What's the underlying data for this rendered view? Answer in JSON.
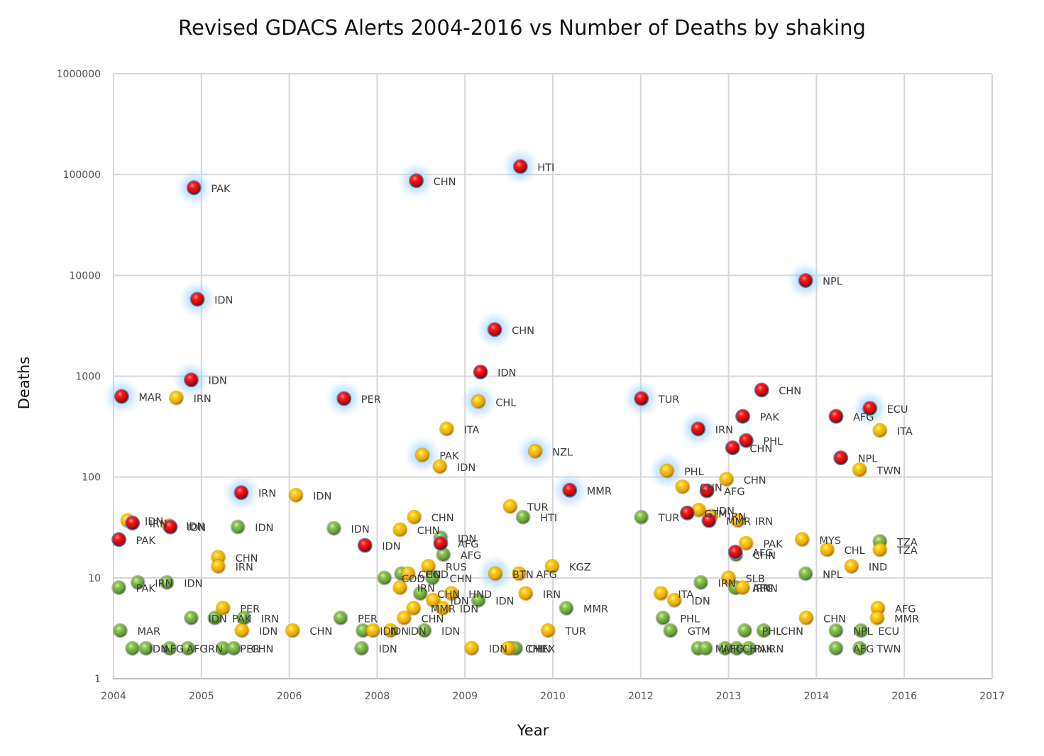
{
  "chart_data": {
    "type": "scatter",
    "title": "Revised GDACS Alerts 2004-2016 vs Number of Deaths by shaking",
    "xlabel": "Year",
    "ylabel": "Deaths",
    "xlim": [
      2004,
      2017
    ],
    "ylim": [
      1,
      1000000
    ],
    "yscale": "log",
    "grid": true,
    "legend": "none",
    "x_tick_labels": [
      "2004",
      "2005",
      "2006",
      "2008",
      "2009",
      "2010",
      "2012",
      "2013",
      "2014",
      "2016",
      "2017"
    ],
    "y_tick_labels": [
      "1",
      "10",
      "100",
      "1000",
      "10000",
      "100000",
      "1000000"
    ],
    "alert_colors": {
      "red": "#e00000",
      "orange": "#f2b400",
      "green": "#7cb342"
    },
    "series": [
      {
        "name": "Red alerts",
        "alert": "red",
        "points": [
          {
            "x": 2005.19,
            "y": 74000,
            "label": "PAK",
            "glow": true
          },
          {
            "x": 2008.48,
            "y": 87000,
            "label": "CHN",
            "glow": true
          },
          {
            "x": 2010.02,
            "y": 120000,
            "label": "HTI",
            "glow": true
          },
          {
            "x": 2005.24,
            "y": 5800,
            "label": "IDN",
            "glow": true
          },
          {
            "x": 2009.64,
            "y": 2900,
            "label": "CHN",
            "glow": true
          },
          {
            "x": 2014.24,
            "y": 8900,
            "label": "NPL",
            "glow": true
          },
          {
            "x": 2004.12,
            "y": 630,
            "label": "MAR",
            "glow": true
          },
          {
            "x": 2005.15,
            "y": 920,
            "label": "IDN",
            "glow": true
          },
          {
            "x": 2007.41,
            "y": 600,
            "label": "PER",
            "glow": true
          },
          {
            "x": 2009.43,
            "y": 1100,
            "label": "IDN",
            "glow": false
          },
          {
            "x": 2011.81,
            "y": 600,
            "label": "TUR",
            "glow": true
          },
          {
            "x": 2012.65,
            "y": 300,
            "label": "IRN",
            "glow": true
          },
          {
            "x": 2013.31,
            "y": 400,
            "label": "PAK",
            "glow": false
          },
          {
            "x": 2013.59,
            "y": 730,
            "label": "CHN",
            "glow": false
          },
          {
            "x": 2013.16,
            "y": 195,
            "label": "CHN",
            "glow": false
          },
          {
            "x": 2013.36,
            "y": 230,
            "label": "PHL",
            "glow": false
          },
          {
            "x": 2014.69,
            "y": 400,
            "label": "AFG",
            "glow": false
          },
          {
            "x": 2015.19,
            "y": 480,
            "label": "ECU",
            "glow": true
          },
          {
            "x": 2014.76,
            "y": 155,
            "label": "NPL",
            "glow": false
          },
          {
            "x": 2005.89,
            "y": 70,
            "label": "IRN",
            "glow": true
          },
          {
            "x": 2010.75,
            "y": 74,
            "label": "MMR",
            "glow": true
          },
          {
            "x": 2012.78,
            "y": 73,
            "label": "AFG",
            "glow": false
          },
          {
            "x": 2012.49,
            "y": 44,
            "label": "GTM",
            "glow": false
          },
          {
            "x": 2012.81,
            "y": 37,
            "label": "MMR",
            "glow": false
          },
          {
            "x": 2004.28,
            "y": 35,
            "label": "IRN",
            "glow": false
          },
          {
            "x": 2004.84,
            "y": 32,
            "label": "IDN",
            "glow": false
          },
          {
            "x": 2004.08,
            "y": 24,
            "label": "PAK",
            "glow": false
          },
          {
            "x": 2007.72,
            "y": 21,
            "label": "IDN",
            "glow": false
          },
          {
            "x": 2008.84,
            "y": 22,
            "label": "AFG",
            "glow": false
          },
          {
            "x": 2013.2,
            "y": 18,
            "label": "AFG",
            "glow": false
          }
        ]
      },
      {
        "name": "Orange alerts",
        "alert": "orange",
        "points": [
          {
            "x": 2004.93,
            "y": 610,
            "label": "IRN",
            "glow": false
          },
          {
            "x": 2009.4,
            "y": 560,
            "label": "CHL",
            "glow": true
          },
          {
            "x": 2008.93,
            "y": 300,
            "label": "ITA",
            "glow": false
          },
          {
            "x": 2008.57,
            "y": 165,
            "label": "PAK",
            "glow": true
          },
          {
            "x": 2008.83,
            "y": 127,
            "label": "IDN",
            "glow": false
          },
          {
            "x": 2010.24,
            "y": 180,
            "label": "NZL",
            "glow": true
          },
          {
            "x": 2012.19,
            "y": 115,
            "label": "PHL",
            "glow": true
          },
          {
            "x": 2012.42,
            "y": 80,
            "label": "CHN",
            "glow": false
          },
          {
            "x": 2013.07,
            "y": 95,
            "label": "CHN",
            "glow": false
          },
          {
            "x": 2015.34,
            "y": 290,
            "label": "ITA",
            "glow": false
          },
          {
            "x": 2015.04,
            "y": 118,
            "label": "TWN",
            "glow": false
          },
          {
            "x": 2006.7,
            "y": 66,
            "label": "IDN",
            "glow": false
          },
          {
            "x": 2004.21,
            "y": 37,
            "label": "IDN",
            "glow": false
          },
          {
            "x": 2004.82,
            "y": 33,
            "label": "IDN",
            "glow": false
          },
          {
            "x": 2008.45,
            "y": 40,
            "label": "CHN",
            "glow": false
          },
          {
            "x": 2008.24,
            "y": 30,
            "label": "CHN",
            "glow": false
          },
          {
            "x": 2009.87,
            "y": 51,
            "label": "TUR",
            "glow": false
          },
          {
            "x": 2012.66,
            "y": 47,
            "label": "IDN",
            "glow": false
          },
          {
            "x": 2012.84,
            "y": 41,
            "label": "IRN",
            "glow": false
          },
          {
            "x": 2013.24,
            "y": 37,
            "label": "IRN",
            "glow": false
          },
          {
            "x": 2013.36,
            "y": 22,
            "label": "PAK",
            "glow": false
          },
          {
            "x": 2014.19,
            "y": 24,
            "label": "MYS",
            "glow": false
          },
          {
            "x": 2014.56,
            "y": 19,
            "label": "CHL",
            "glow": false
          },
          {
            "x": 2015.34,
            "y": 19,
            "label": "TZA",
            "glow": false
          },
          {
            "x": 2014.92,
            "y": 13,
            "label": "IND",
            "glow": false
          },
          {
            "x": 2005.55,
            "y": 16,
            "label": "CHN",
            "glow": false
          },
          {
            "x": 2005.55,
            "y": 13,
            "label": "IRN",
            "glow": false
          },
          {
            "x": 2008.66,
            "y": 13,
            "label": "RUS",
            "glow": false
          },
          {
            "x": 2008.36,
            "y": 11,
            "label": "COD",
            "glow": false
          },
          {
            "x": 2009.65,
            "y": 11,
            "label": "BTN",
            "glow": true
          },
          {
            "x": 2010.0,
            "y": 11,
            "label": "AFG",
            "glow": false
          },
          {
            "x": 2010.49,
            "y": 13,
            "label": "KGZ",
            "glow": false
          },
          {
            "x": 2013.1,
            "y": 10,
            "label": "SLB",
            "glow": false
          },
          {
            "x": 2013.31,
            "y": 8,
            "label": "IRN",
            "glow": false
          },
          {
            "x": 2008.24,
            "y": 8,
            "label": "IRN",
            "glow": false
          },
          {
            "x": 2008.73,
            "y": 6,
            "label": "IDN",
            "glow": false
          },
          {
            "x": 2009.0,
            "y": 7,
            "label": "HND",
            "glow": false
          },
          {
            "x": 2008.44,
            "y": 5,
            "label": "MMR",
            "glow": false
          },
          {
            "x": 2008.87,
            "y": 5,
            "label": "IDN",
            "glow": false
          },
          {
            "x": 2010.1,
            "y": 7,
            "label": "IRN",
            "glow": false
          },
          {
            "x": 2012.1,
            "y": 7,
            "label": "ITA",
            "glow": false
          },
          {
            "x": 2012.3,
            "y": 6,
            "label": "IDN",
            "glow": false
          },
          {
            "x": 2005.62,
            "y": 5,
            "label": "PER",
            "glow": false
          },
          {
            "x": 2008.3,
            "y": 4,
            "label": "CHN",
            "glow": false
          },
          {
            "x": 2015.31,
            "y": 5,
            "label": "AFG",
            "glow": false
          },
          {
            "x": 2015.3,
            "y": 4,
            "label": "MMR",
            "glow": false
          },
          {
            "x": 2014.25,
            "y": 4,
            "label": "CHN",
            "glow": false
          },
          {
            "x": 2005.9,
            "y": 3,
            "label": "IDN",
            "glow": false
          },
          {
            "x": 2006.65,
            "y": 3,
            "label": "CHN",
            "glow": false
          },
          {
            "x": 2007.84,
            "y": 3,
            "label": "IDN",
            "glow": false
          },
          {
            "x": 2008.1,
            "y": 3,
            "label": "IDN",
            "glow": false
          },
          {
            "x": 2010.43,
            "y": 3,
            "label": "TUR",
            "glow": false
          },
          {
            "x": 2009.3,
            "y": 2,
            "label": "IDN",
            "glow": false
          },
          {
            "x": 2009.84,
            "y": 2,
            "label": "CHL",
            "glow": false
          }
        ]
      },
      {
        "name": "Green alerts",
        "alert": "green",
        "points": [
          {
            "x": 2005.84,
            "y": 32,
            "label": "IDN",
            "glow": false
          },
          {
            "x": 2007.26,
            "y": 31,
            "label": "IDN",
            "glow": false
          },
          {
            "x": 2008.84,
            "y": 25,
            "label": "IDN",
            "glow": false
          },
          {
            "x": 2008.88,
            "y": 17,
            "label": "AFG",
            "glow": false
          },
          {
            "x": 2010.06,
            "y": 40,
            "label": "HTI",
            "glow": false
          },
          {
            "x": 2011.81,
            "y": 40,
            "label": "TUR",
            "glow": false
          },
          {
            "x": 2013.21,
            "y": 17,
            "label": "CHN",
            "glow": false
          },
          {
            "x": 2015.34,
            "y": 23,
            "label": "TZA",
            "glow": false
          },
          {
            "x": 2014.24,
            "y": 11,
            "label": "NPL",
            "glow": false
          },
          {
            "x": 2004.08,
            "y": 8,
            "label": "PAK",
            "glow": false
          },
          {
            "x": 2004.36,
            "y": 9,
            "label": "IRN",
            "glow": false
          },
          {
            "x": 2004.79,
            "y": 9,
            "label": "IDN",
            "glow": false
          },
          {
            "x": 2008.26,
            "y": 11,
            "label": "CHN",
            "glow": false
          },
          {
            "x": 2008.01,
            "y": 10,
            "label": "COD",
            "glow": false
          },
          {
            "x": 2008.72,
            "y": 10,
            "label": "CHN",
            "glow": false
          },
          {
            "x": 2008.54,
            "y": 7,
            "label": "CHN",
            "glow": false
          },
          {
            "x": 2009.4,
            "y": 6,
            "label": "IDN",
            "glow": false
          },
          {
            "x": 2012.69,
            "y": 9,
            "label": "IRN",
            "glow": false
          },
          {
            "x": 2013.2,
            "y": 8,
            "label": "AFG",
            "glow": false
          },
          {
            "x": 2013.21,
            "y": 8,
            "label": "IRN",
            "glow": false
          },
          {
            "x": 2010.7,
            "y": 5,
            "label": "MMR",
            "glow": false
          },
          {
            "x": 2012.13,
            "y": 4,
            "label": "PHL",
            "glow": false
          },
          {
            "x": 2005.15,
            "y": 4,
            "label": "IDN",
            "glow": false
          },
          {
            "x": 2005.5,
            "y": 4,
            "label": "PAK",
            "glow": false
          },
          {
            "x": 2005.93,
            "y": 4,
            "label": "IRN",
            "glow": false
          },
          {
            "x": 2007.36,
            "y": 4,
            "label": "PER",
            "glow": false
          },
          {
            "x": 2004.1,
            "y": 3,
            "label": "MAR",
            "glow": false
          },
          {
            "x": 2007.69,
            "y": 3,
            "label": "IDN",
            "glow": false
          },
          {
            "x": 2008.6,
            "y": 3,
            "label": "IDN",
            "glow": false
          },
          {
            "x": 2012.24,
            "y": 3,
            "label": "GTM",
            "glow": false
          },
          {
            "x": 2013.34,
            "y": 3,
            "label": "PHL",
            "glow": false
          },
          {
            "x": 2013.62,
            "y": 3,
            "label": "CHN",
            "glow": false
          },
          {
            "x": 2014.69,
            "y": 3,
            "label": "NPL",
            "glow": false
          },
          {
            "x": 2015.06,
            "y": 3,
            "label": "ECU",
            "glow": false
          },
          {
            "x": 2004.28,
            "y": 2,
            "label": "IDN",
            "glow": false
          },
          {
            "x": 2004.48,
            "y": 2,
            "label": "AFG",
            "glow": false
          },
          {
            "x": 2004.83,
            "y": 2,
            "label": "AFG",
            "glow": false
          },
          {
            "x": 2005.1,
            "y": 2,
            "label": "IRN",
            "glow": false
          },
          {
            "x": 2005.62,
            "y": 2,
            "label": "PER",
            "glow": false
          },
          {
            "x": 2005.78,
            "y": 2,
            "label": "CHN",
            "glow": false
          },
          {
            "x": 2007.67,
            "y": 2,
            "label": "IDN",
            "glow": false
          },
          {
            "x": 2009.88,
            "y": 2,
            "label": "CHN",
            "glow": false
          },
          {
            "x": 2009.95,
            "y": 2,
            "label": "MEX",
            "glow": false
          },
          {
            "x": 2012.65,
            "y": 2,
            "label": "MMR",
            "glow": false
          },
          {
            "x": 2012.76,
            "y": 2,
            "label": "AFG",
            "glow": false
          },
          {
            "x": 2013.05,
            "y": 2,
            "label": "CHN",
            "glow": false
          },
          {
            "x": 2013.22,
            "y": 2,
            "label": "PAK",
            "glow": false
          },
          {
            "x": 2013.4,
            "y": 2,
            "label": "IRN",
            "glow": false
          },
          {
            "x": 2014.69,
            "y": 2,
            "label": "AFG",
            "glow": false
          },
          {
            "x": 2015.04,
            "y": 2,
            "label": "TWN",
            "glow": false
          }
        ]
      }
    ]
  }
}
